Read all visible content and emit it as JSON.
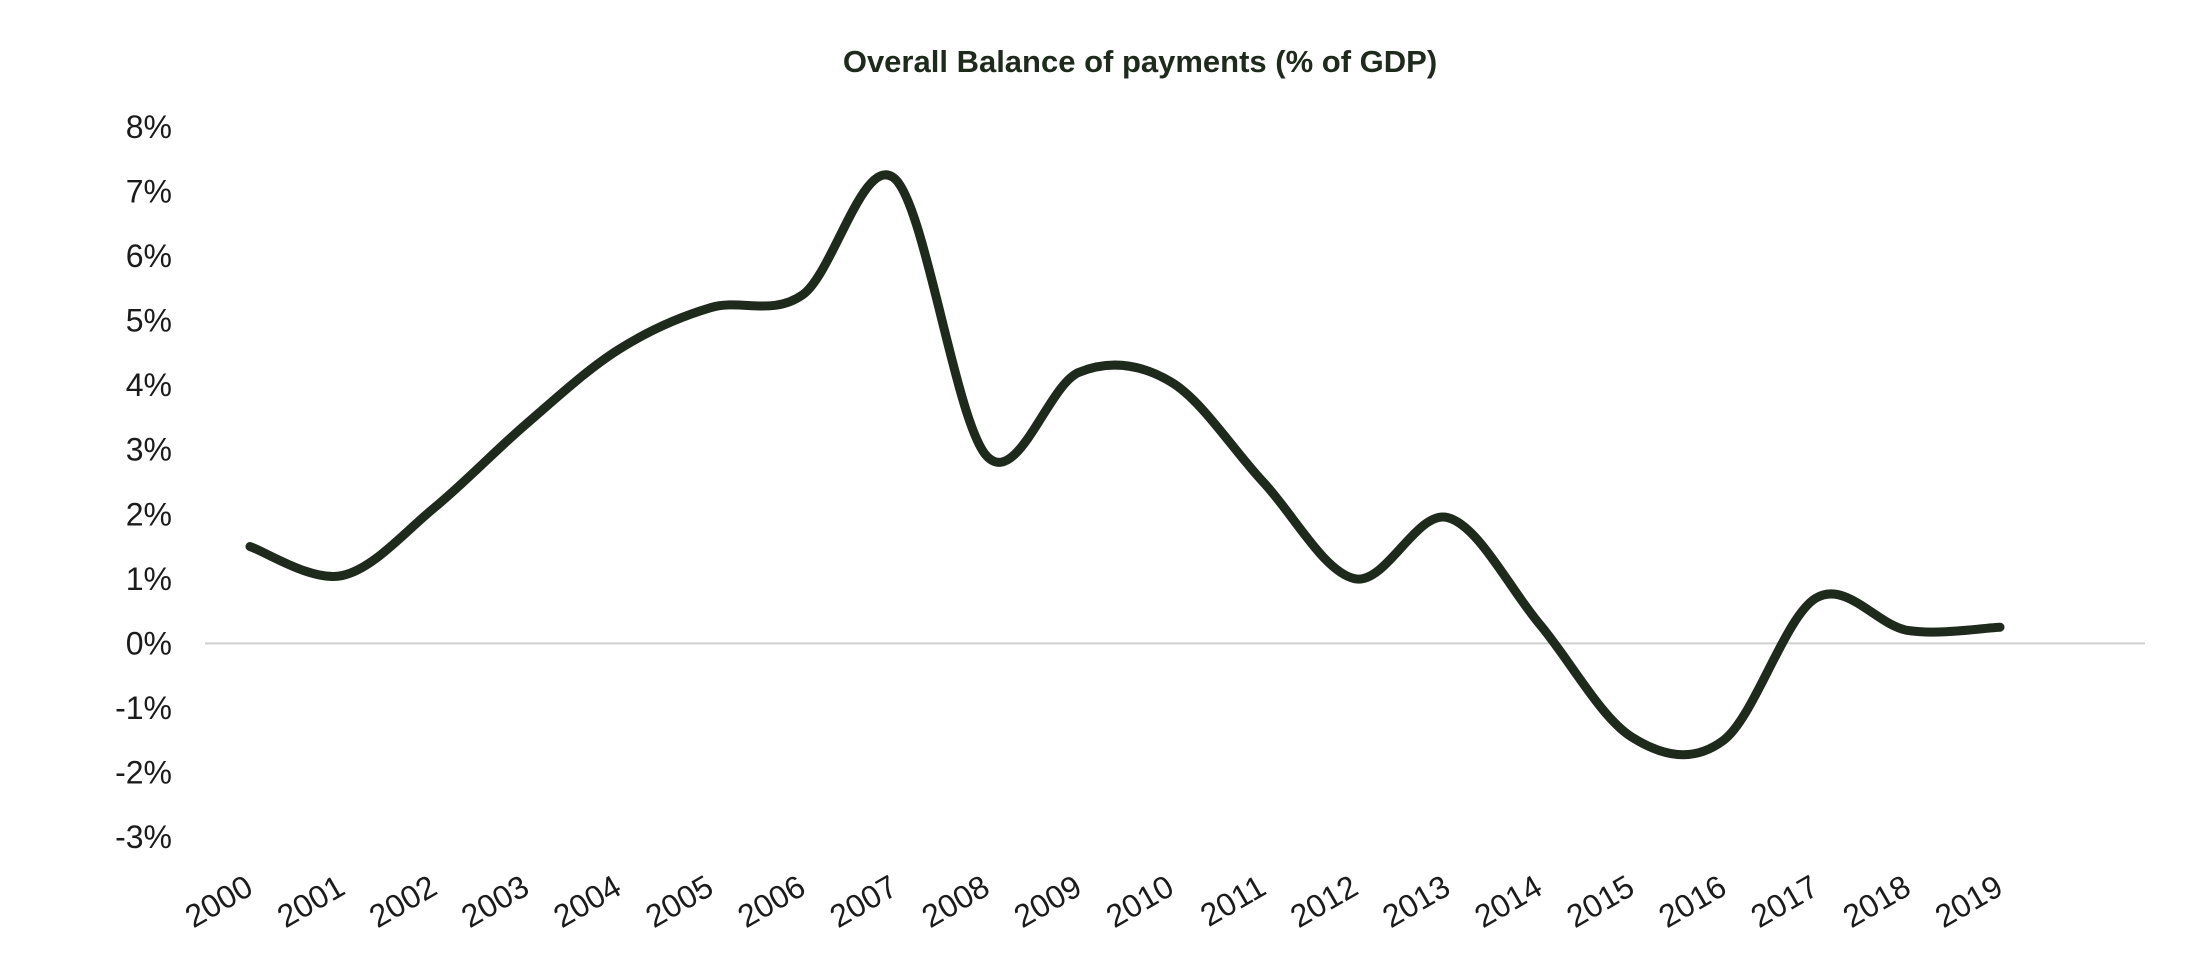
{
  "chart_data": {
    "type": "line",
    "title": "Overall Balance of payments (% of GDP)",
    "xlabel": "",
    "ylabel": "",
    "categories": [
      "2000",
      "2001",
      "2002",
      "2003",
      "2004",
      "2005",
      "2006",
      "2007",
      "2008",
      "2009",
      "2010",
      "2011",
      "2012",
      "2013",
      "2014",
      "2015",
      "2016",
      "2017",
      "2018",
      "2019"
    ],
    "series": [
      {
        "values": [
          1.5,
          1.05,
          2.1,
          3.4,
          4.55,
          5.2,
          5.4,
          7.2,
          2.9,
          4.2,
          4.05,
          2.5,
          1.0,
          1.95,
          0.3,
          -1.45,
          -1.5,
          0.7,
          0.2,
          0.25
        ]
      }
    ],
    "ylim": [
      -3,
      8
    ],
    "yticks": [
      8,
      7,
      6,
      5,
      4,
      3,
      2,
      1,
      0,
      -1,
      -2,
      -3
    ],
    "ytick_labels": [
      "8%",
      "7%",
      "6%",
      "5%",
      "4%",
      "3%",
      "2%",
      "1%",
      "0%",
      "-1%",
      "-2%",
      "-3%"
    ],
    "grid": false,
    "zero_line": true,
    "line_color": "#1e2a1c",
    "axis_line_color": "#cfcfcf",
    "legend": "none"
  }
}
